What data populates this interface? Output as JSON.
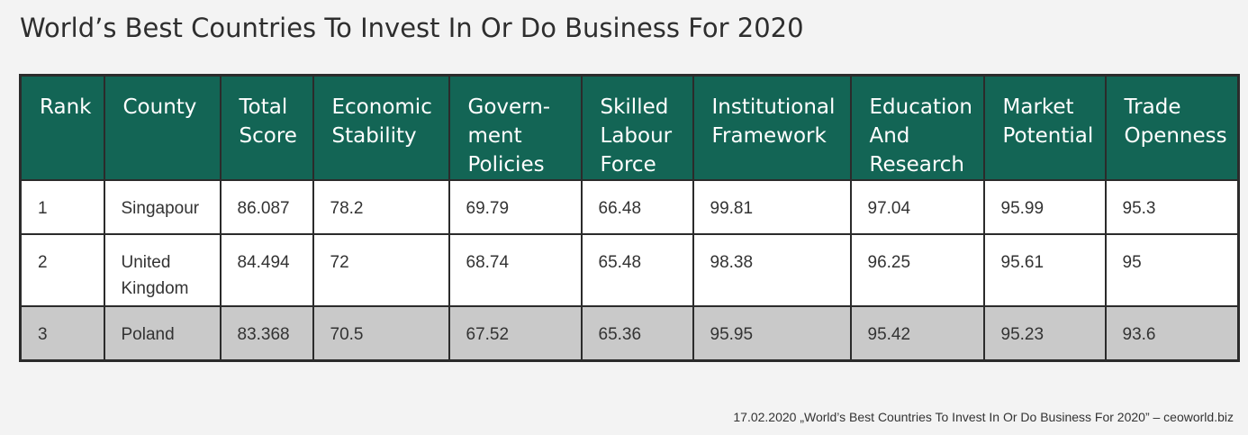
{
  "title": "World’s Best Countries To Invest In Or Do Business For 2020",
  "source": "17.02.2020 „World’s Best Countries To Invest In Or Do Business For 2020” – ceoworld.biz",
  "colors": {
    "header_bg": "#136555",
    "header_text": "#ffffff",
    "highlight_row": "#c9c9c9",
    "border": "#2b2b2b",
    "page_bg": "#f3f3f3"
  },
  "chart_data": {
    "type": "table",
    "title": "World’s Best Countries To Invest In Or Do Business For 2020",
    "columns": [
      [
        "Rank"
      ],
      [
        "County"
      ],
      [
        "Total",
        "Score"
      ],
      [
        "Economic",
        "Stability"
      ],
      [
        "Govern-",
        "ment",
        "Policies"
      ],
      [
        "Skilled",
        "Labour",
        "Force"
      ],
      [
        "Institutional",
        "Framework"
      ],
      [
        "Education",
        "And",
        "Research"
      ],
      [
        "Market",
        "Potential"
      ],
      [
        "Trade",
        "Openness"
      ]
    ],
    "rows": [
      {
        "cells": [
          "1",
          [
            "Singapour"
          ],
          "86.087",
          "78.2",
          "69.79",
          "66.48",
          "99.81",
          "97.04",
          "95.99",
          "95.3"
        ],
        "highlight": false
      },
      {
        "cells": [
          "2",
          [
            "United",
            "Kingdom"
          ],
          "84.494",
          "72",
          "68.74",
          "65.48",
          "98.38",
          "96.25",
          "95.61",
          "95"
        ],
        "highlight": false
      },
      {
        "cells": [
          "3",
          [
            "Poland"
          ],
          "83.368",
          "70.5",
          "67.52",
          "65.36",
          "95.95",
          "95.42",
          "95.23",
          "93.6"
        ],
        "highlight": true
      }
    ]
  }
}
